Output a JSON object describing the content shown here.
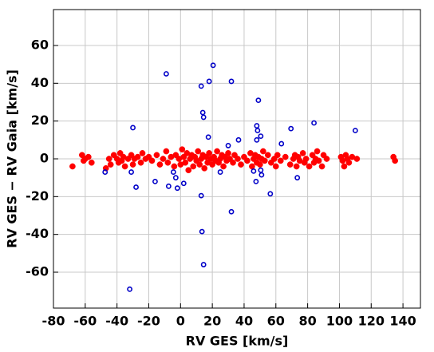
{
  "chart_data": {
    "type": "scatter",
    "x_label": "RV GES  [km/s]",
    "y_label": "RV GES − RV Gaia  [km/s]",
    "xlim": [
      -80,
      151
    ],
    "ylim": [
      -79,
      79
    ],
    "xticks": [
      -80,
      -60,
      -40,
      -20,
      0,
      20,
      40,
      60,
      80,
      100,
      120,
      140
    ],
    "yticks": [
      -60,
      -40,
      -20,
      0,
      20,
      40,
      60
    ],
    "grid": true,
    "series": [
      {
        "color": "#ff0000",
        "marker": "filled",
        "x": [
          -68,
          -62,
          -61,
          -60,
          -58,
          -56,
          -47,
          -45,
          -44,
          -42,
          -40,
          -39,
          -38,
          -37,
          -36,
          -35,
          -33,
          -31,
          -30,
          -29,
          -27,
          -25,
          -24,
          -22,
          -20,
          -18,
          -15,
          -13,
          -11,
          -9,
          -8,
          -6,
          -4,
          -3,
          -1,
          0,
          1,
          2,
          3,
          4,
          5,
          6,
          7,
          8,
          9,
          10,
          11,
          12,
          13,
          14,
          15,
          16,
          17,
          18,
          19,
          20,
          21,
          22,
          23,
          24,
          25,
          26,
          27,
          28,
          29,
          30,
          31,
          33,
          34,
          36,
          38,
          40,
          42,
          44,
          45,
          46,
          47,
          48,
          49,
          50,
          51,
          52,
          53,
          55,
          57,
          59,
          60,
          61,
          63,
          66,
          69,
          71,
          72,
          73,
          74,
          75,
          77,
          78,
          79,
          81,
          83,
          84,
          85,
          86,
          87,
          89,
          90,
          92,
          101,
          102,
          103,
          104,
          105,
          106,
          108,
          111,
          134,
          135
        ],
        "values": [
          -4,
          2,
          -1,
          0,
          1,
          -2,
          -5,
          0,
          -3,
          2,
          0,
          -2,
          3,
          -1,
          1,
          -4,
          0,
          2,
          -3,
          0,
          1,
          -2,
          3,
          0,
          1,
          -1,
          2,
          -3,
          0,
          4,
          -2,
          1,
          -4,
          2,
          0,
          -3,
          5,
          1,
          -2,
          3,
          -6,
          0,
          2,
          -4,
          1,
          -1,
          4,
          -3,
          0,
          2,
          -5,
          1,
          -2,
          3,
          0,
          -3,
          1,
          -1,
          4,
          -2,
          0,
          2,
          -4,
          1,
          -1,
          3,
          0,
          -2,
          2,
          0,
          -3,
          1,
          -1,
          3,
          -4,
          0,
          2,
          -2,
          1,
          -3,
          0,
          4,
          -1,
          2,
          -2,
          0,
          -4,
          2,
          -1,
          1,
          -3,
          0,
          2,
          -4,
          1,
          -1,
          3,
          -2,
          0,
          -4,
          2,
          -2,
          0,
          4,
          -1,
          -4,
          2,
          0,
          1,
          -1,
          -4,
          2,
          0,
          -2,
          1,
          0,
          1,
          -1
        ]
      },
      {
        "color": "#0000c8",
        "marker": "open",
        "x": [
          -9,
          20.5,
          18,
          13,
          32,
          49,
          14,
          14.5,
          -30,
          48,
          48.5,
          69.5,
          84,
          110,
          17.5,
          50.5,
          48,
          63.5,
          36.5,
          30,
          -47.5,
          -31,
          -28,
          -16,
          -7.5,
          -4.5,
          -3,
          -2,
          2,
          13,
          25,
          32,
          13.5,
          14.5,
          -32,
          46,
          47.5,
          50.5,
          51,
          56.5,
          73.5
        ],
        "values": [
          45,
          49.5,
          41,
          38.5,
          41,
          31,
          24.5,
          22,
          16.5,
          17.5,
          15,
          16,
          19,
          15,
          11.5,
          12,
          10,
          8,
          10,
          7,
          -7,
          -7,
          -15,
          -12,
          -14.5,
          -7,
          -10,
          -15.5,
          -13,
          -19.5,
          -7,
          -28,
          -38.5,
          -56,
          -69,
          -6.5,
          -12,
          -6,
          -8.5,
          -18.5,
          -10
        ]
      }
    ]
  }
}
